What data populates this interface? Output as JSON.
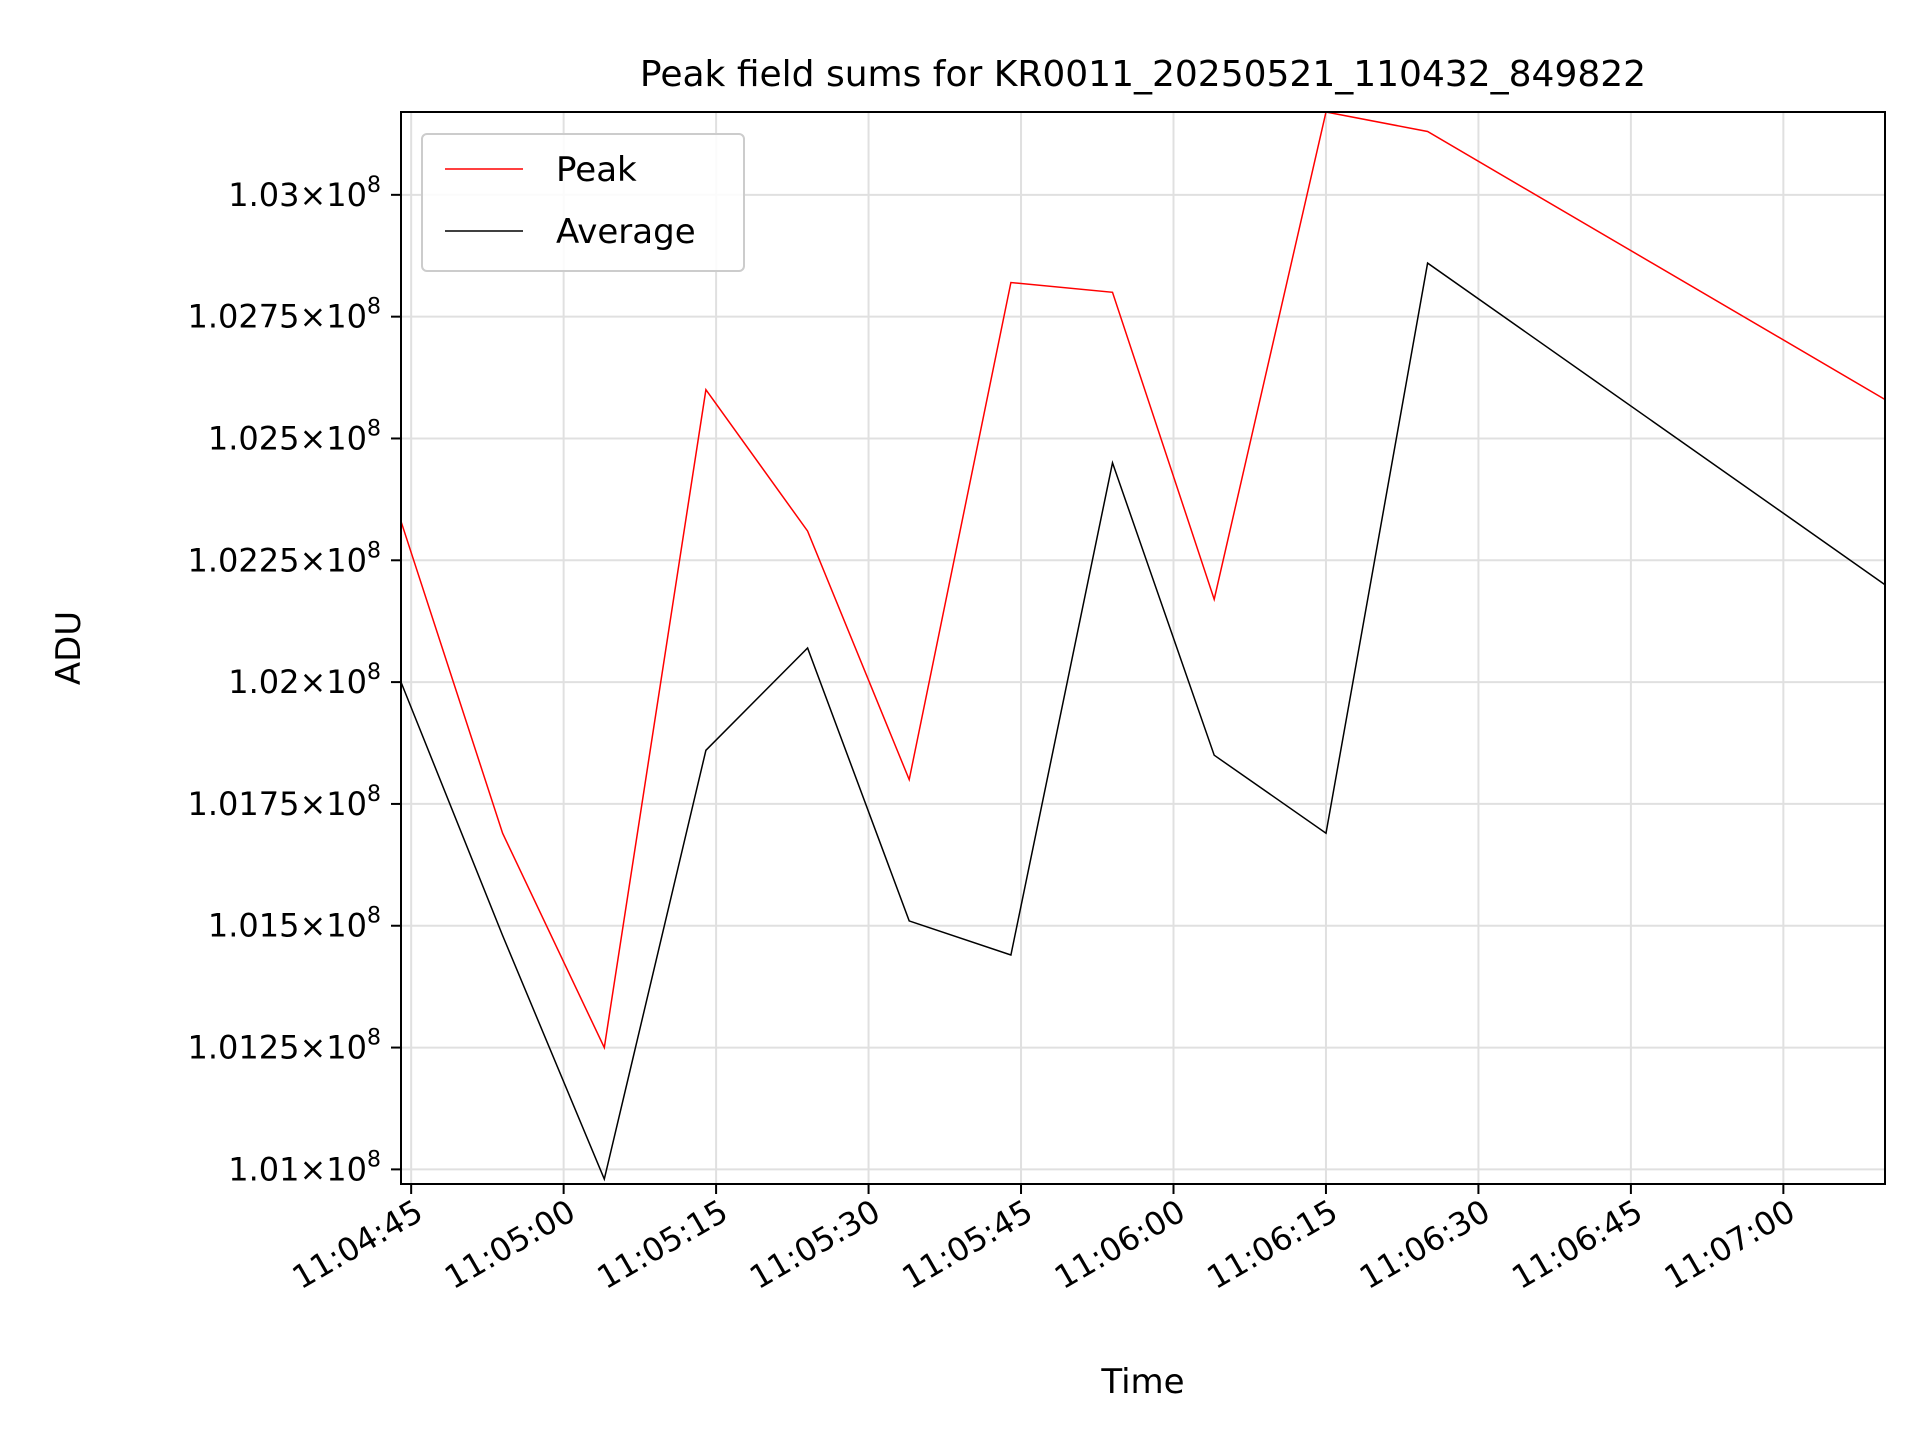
{
  "chart_data": {
    "type": "line",
    "title": "Peak field sums for KR0011_20250521_110432_849822",
    "xlabel": "Time",
    "ylabel": "ADU",
    "grid": true,
    "legend_position": "top-left",
    "x": [
      "11:04:44",
      "11:04:54",
      "11:05:04",
      "11:05:14",
      "11:05:24",
      "11:05:34",
      "11:05:44",
      "11:05:54",
      "11:06:04",
      "11:06:15",
      "11:06:25",
      "11:07:10"
    ],
    "xlim": [
      "11:04:44",
      "11:07:10"
    ],
    "xticks": [
      "11:04:45",
      "11:05:00",
      "11:05:15",
      "11:05:30",
      "11:05:45",
      "11:06:00",
      "11:06:15",
      "11:06:30",
      "11:06:45",
      "11:07:00"
    ],
    "ylim": [
      100970000,
      103170000
    ],
    "yticks": [
      {
        "value": 101000000,
        "mantissa": "1.01"
      },
      {
        "value": 101250000,
        "mantissa": "1.0125"
      },
      {
        "value": 101500000,
        "mantissa": "1.015"
      },
      {
        "value": 101750000,
        "mantissa": "1.0175"
      },
      {
        "value": 102000000,
        "mantissa": "1.02"
      },
      {
        "value": 102250000,
        "mantissa": "1.0225"
      },
      {
        "value": 102500000,
        "mantissa": "1.025"
      },
      {
        "value": 102750000,
        "mantissa": "1.0275"
      },
      {
        "value": 103000000,
        "mantissa": "1.03"
      }
    ],
    "ytick_exponent_base": "10",
    "ytick_exponent": "8",
    "series": [
      {
        "name": "Peak",
        "color": "#ff0000",
        "values": [
          102330000,
          101690000,
          101250000,
          102600000,
          102310000,
          101800000,
          102820000,
          102800000,
          102170000,
          103170000,
          103130000,
          102580000
        ]
      },
      {
        "name": "Average",
        "color": "#000000",
        "values": [
          102000000,
          101480000,
          100980000,
          101860000,
          102070000,
          101510000,
          101440000,
          102450000,
          101850000,
          101690000,
          102860000,
          102200000
        ]
      }
    ]
  }
}
